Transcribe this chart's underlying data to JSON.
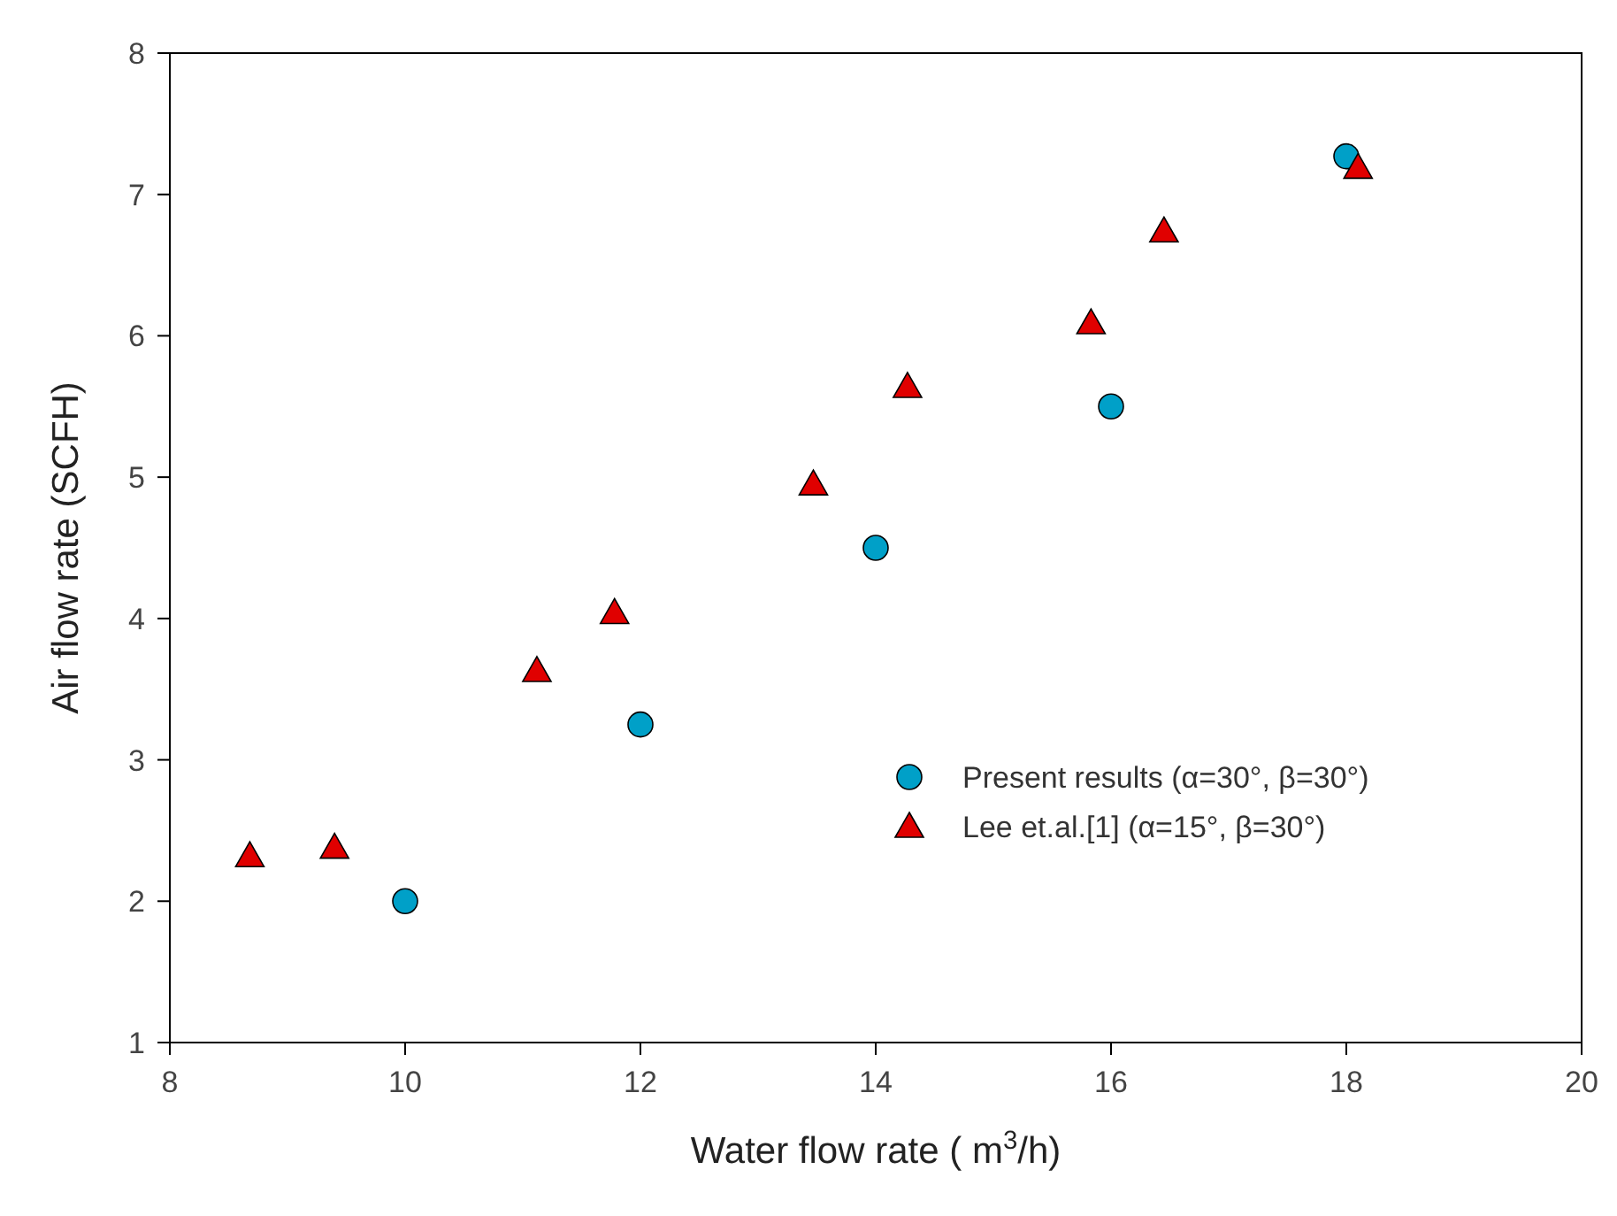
{
  "chart_data": {
    "type": "scatter",
    "xlabel": "Water flow rate ( m$^{3}$/h)",
    "ylabel": "Air flow rate (SCFH)",
    "xlim": [
      8,
      20
    ],
    "xticks": [
      8,
      10,
      12,
      14,
      16,
      18,
      20
    ],
    "ylim": [
      1,
      8
    ],
    "yticks": [
      1,
      2,
      3,
      4,
      5,
      6,
      7,
      8
    ],
    "grid": false,
    "legend": "bottom right",
    "series": [
      {
        "name": "Present results (α=30°, β=30°)",
        "color": "#00a0c8",
        "marker": "circle",
        "x": [
          10,
          12,
          14,
          16,
          18
        ],
        "values": [
          2.0,
          3.25,
          4.5,
          5.5,
          7.27
        ]
      },
      {
        "name": "Lee et.al.[1] (α=15°, β=30°)",
        "color": "#e00000",
        "marker": "triangle",
        "x": [
          8.68,
          9.4,
          11.12,
          11.78,
          13.47,
          14.27,
          15.83,
          16.45,
          18.1
        ],
        "values": [
          2.32,
          2.38,
          3.63,
          4.04,
          4.95,
          5.64,
          6.09,
          6.74,
          7.19
        ]
      }
    ]
  }
}
